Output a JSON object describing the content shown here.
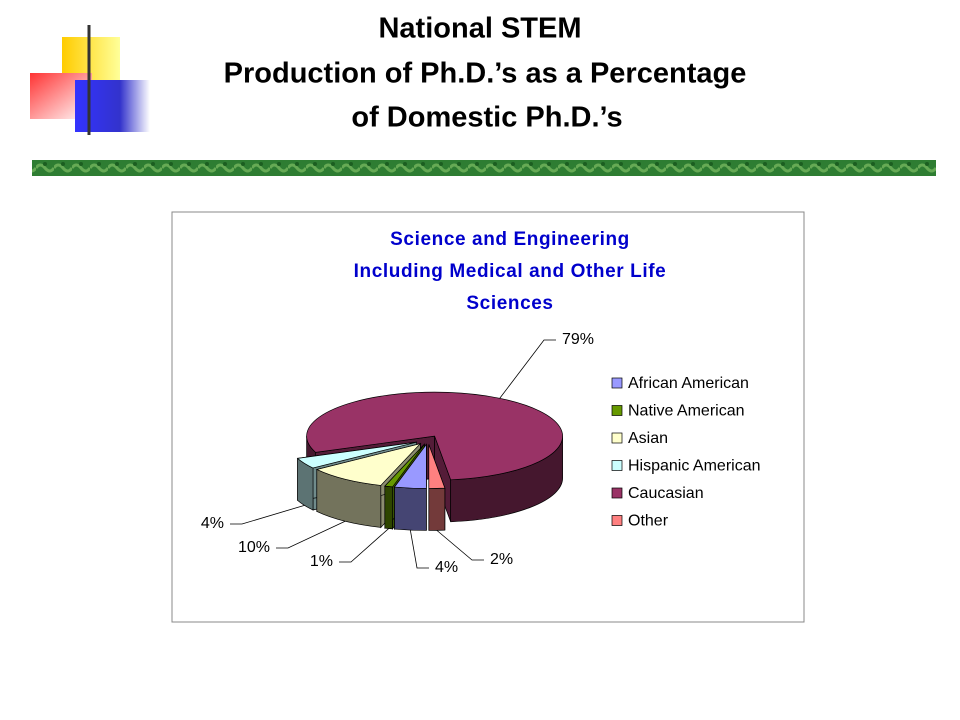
{
  "slide": {
    "title_lines": [
      "National STEM",
      "Production of Ph.D.’s as a Percentage",
      "of Domestic Ph.D.’s"
    ]
  },
  "chart_data": {
    "type": "pie",
    "title_lines": [
      "Science and Engineering",
      "Including Medical and Other Life",
      "Sciences"
    ],
    "categories": [
      "African American",
      "Native American",
      "Asian",
      "Hispanic American",
      "Caucasian",
      "Other"
    ],
    "values": [
      4,
      1,
      10,
      4,
      79,
      2
    ],
    "value_labels": [
      "4%",
      "1%",
      "10%",
      "4%",
      "79%",
      "2%"
    ],
    "colors": [
      "#9999ff",
      "#669900",
      "#ffffcc",
      "#ccffff",
      "#993366",
      "#ff8080"
    ],
    "legend": "right"
  }
}
